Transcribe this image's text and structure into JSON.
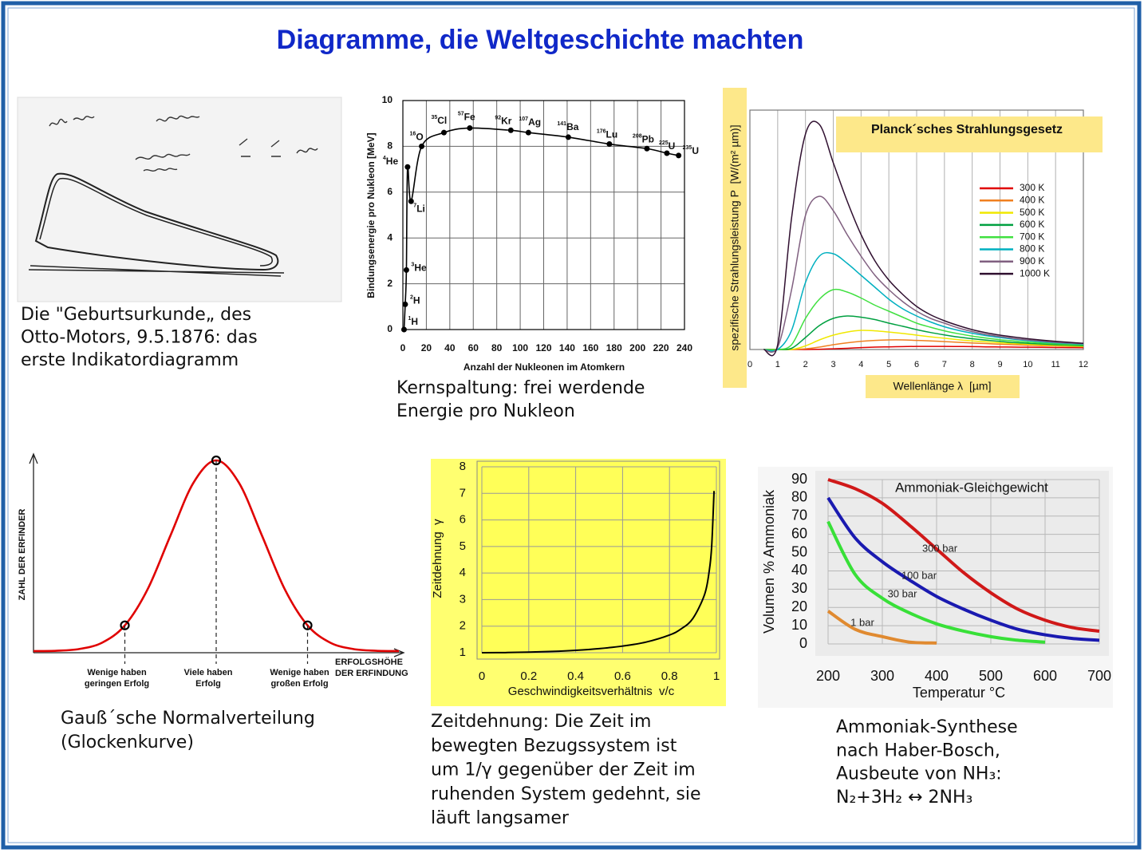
{
  "document": {
    "title": "Diagramme, die Weltgeschichte machten",
    "otto_caption": [
      "Die \"Geburtsurkunde„ des",
      "Otto-Motors, 9.5.1876: das",
      "erste Indikatordiagramm"
    ]
  },
  "chart_data": [
    {
      "type": "line",
      "ylabel": "Bindungsenergie pro Nukleon [MeV]",
      "xlabel": "Anzahl der Nukleonen im Atomkern",
      "x": [
        1,
        2,
        3,
        4,
        7,
        16,
        35,
        57,
        92,
        107,
        141,
        176,
        208,
        225,
        235
      ],
      "values": [
        0,
        1.1,
        2.6,
        7.1,
        5.6,
        8.0,
        8.6,
        8.8,
        8.7,
        8.6,
        8.4,
        8.1,
        7.9,
        7.7,
        7.6
      ],
      "point_labels": [
        {
          "mass": "1",
          "element": "H"
        },
        {
          "mass": "2",
          "element": "H"
        },
        {
          "mass": "3",
          "element": "He"
        },
        {
          "mass": "4",
          "element": "He"
        },
        {
          "mass": "7",
          "element": "Li"
        },
        {
          "mass": "16",
          "element": "O"
        },
        {
          "mass": "35",
          "element": "Cl"
        },
        {
          "mass": "57",
          "element": "Fe"
        },
        {
          "mass": "92",
          "element": "Kr"
        },
        {
          "mass": "107",
          "element": "Ag"
        },
        {
          "mass": "141",
          "element": "Ba"
        },
        {
          "mass": "176",
          "element": "Lu"
        },
        {
          "mass": "208",
          "element": "Pb"
        },
        {
          "mass": "225",
          "element": "U"
        },
        {
          "mass": "235",
          "element": "U"
        }
      ],
      "color": "#000000",
      "markers": true,
      "xlim": [
        0,
        240
      ],
      "xticks": [
        0,
        20,
        40,
        60,
        80,
        100,
        120,
        140,
        160,
        180,
        200,
        220,
        240
      ],
      "ylim": [
        0,
        10
      ],
      "yticks": [
        0,
        2,
        4,
        6,
        8,
        10
      ],
      "grid": true,
      "caption": [
        "Kernspaltung: frei werdende",
        "Energie pro Nukleon"
      ]
    },
    {
      "type": "line",
      "title": "Planck´sches Strahlungsgesetz",
      "ylabel": "spezifische Strahlungsleistung P  [W/(m² µm)]",
      "xlabel": "Wellenlänge λ  [µm]",
      "x": [
        0.5,
        1,
        1.5,
        2,
        2.5,
        3,
        3.5,
        4,
        4.5,
        5,
        5.5,
        6,
        6.5,
        7,
        7.5,
        8,
        8.5,
        9,
        9.5,
        10,
        10.5,
        11,
        11.5,
        12
      ],
      "series": [
        {
          "name": "300 K",
          "color": "#e00000",
          "values": [
            0,
            0,
            0,
            0,
            0.1,
            0.3,
            0.5,
            0.8,
            1,
            1.1,
            1.2,
            1.3,
            1.3,
            1.3,
            1.25,
            1.2,
            1.1,
            1.05,
            1,
            0.95,
            0.9,
            0.85,
            0.8,
            0.75
          ]
        },
        {
          "name": "400 K",
          "color": "#f08020",
          "values": [
            0,
            0,
            0,
            0.3,
            1,
            2,
            2.8,
            3.4,
            3.8,
            4,
            4,
            3.8,
            3.6,
            3.3,
            3,
            2.7,
            2.5,
            2.2,
            2,
            1.8,
            1.6,
            1.5,
            1.3,
            1.2
          ]
        },
        {
          "name": "500 K",
          "color": "#f0e800",
          "values": [
            0,
            0,
            0,
            1.5,
            4,
            6,
            7.3,
            8,
            7.8,
            7.3,
            6.7,
            6,
            5.3,
            4.7,
            4.1,
            3.6,
            3.2,
            2.8,
            2.5,
            2.2,
            1.9,
            1.7,
            1.5,
            1.3
          ]
        },
        {
          "name": "600 K",
          "color": "#00a040",
          "values": [
            0,
            0,
            0.5,
            5,
            10,
            13,
            14,
            13.5,
            12.5,
            11,
            9.7,
            8.3,
            7.1,
            6.1,
            5.2,
            4.5,
            3.9,
            3.4,
            2.9,
            2.6,
            2.3,
            2,
            1.8,
            1.6
          ]
        },
        {
          "name": "700 K",
          "color": "#40e040",
          "values": [
            0,
            0,
            2,
            13,
            21,
            25,
            24,
            21.5,
            18.5,
            16,
            13.5,
            11,
            9.3,
            7.8,
            6.6,
            5.6,
            4.8,
            4.1,
            3.6,
            3.1,
            2.7,
            2.4,
            2.1,
            1.9
          ]
        },
        {
          "name": "800 K",
          "color": "#00b0c0",
          "values": [
            0,
            0,
            8,
            28,
            39,
            40,
            36,
            31,
            26,
            21,
            17,
            14,
            11.5,
            9.5,
            8,
            6.8,
            5.8,
            5,
            4.3,
            3.7,
            3.2,
            2.8,
            2.5,
            2.2
          ]
        },
        {
          "name": "900 K",
          "color": "#806080",
          "values": [
            0,
            1,
            25,
            56,
            64,
            58,
            48,
            39,
            31,
            25,
            20,
            16,
            13,
            11,
            9,
            7.5,
            6.3,
            5.4,
            4.6,
            4,
            3.5,
            3,
            2.7,
            2.4
          ]
        },
        {
          "name": "1000 K",
          "color": "#301030",
          "values": [
            0,
            2,
            55,
            90,
            94,
            78,
            62,
            48,
            37,
            29,
            23,
            18,
            14.5,
            12,
            10,
            8.3,
            7,
            6,
            5.2,
            4.5,
            3.9,
            3.4,
            3,
            2.6
          ]
        }
      ],
      "legend": "right",
      "xlim": [
        0,
        12
      ],
      "xticks": [
        0,
        1,
        2,
        3,
        4,
        5,
        6,
        7,
        8,
        9,
        10,
        11,
        12
      ],
      "ylim": [
        0,
        100
      ],
      "grid": true
    },
    {
      "type": "line",
      "ylabel": "ZAHL DER ERFINDER",
      "xlabel": [
        "ERFOLGSHÖHE",
        "DER ERFINDUNG"
      ],
      "x": [
        -4,
        -3.5,
        -3,
        -2.5,
        -2,
        -1.5,
        -1,
        -0.5,
        0,
        0.5,
        1,
        1.5,
        2,
        2.5,
        3,
        3.5,
        4
      ],
      "values": [
        0.03,
        0.2,
        1.1,
        4.4,
        13.5,
        32.5,
        60.7,
        88.2,
        100,
        88.2,
        60.7,
        32.5,
        13.5,
        4.4,
        1.1,
        0.2,
        0.03
      ],
      "color": "#e00000",
      "xlim": [
        -4,
        4
      ],
      "ylim": [
        0,
        100
      ],
      "highlight_x": [
        -2,
        0,
        2
      ],
      "annotations": [
        [
          "Wenige haben",
          "geringen Erfolg"
        ],
        [
          "Viele haben",
          "Erfolg"
        ],
        [
          "Wenige haben",
          "großen Erfolg"
        ]
      ],
      "caption": [
        "Gauß´sche Normalverteilung",
        "(Glockenkurve)"
      ]
    },
    {
      "type": "line",
      "ylabel": "Zeitdehnung  γ",
      "xlabel": "Geschwindigkeitsverhältnis  v/c",
      "x": [
        0,
        0.1,
        0.2,
        0.3,
        0.4,
        0.5,
        0.6,
        0.7,
        0.8,
        0.85,
        0.9,
        0.95,
        0.97,
        0.98,
        0.99
      ],
      "values": [
        1,
        1.005,
        1.021,
        1.048,
        1.091,
        1.155,
        1.25,
        1.4,
        1.667,
        1.898,
        2.294,
        3.203,
        4.113,
        5.025,
        7.089
      ],
      "color": "#000000",
      "xlim": [
        0,
        1
      ],
      "xticks": [
        0,
        0.2,
        0.4,
        0.6,
        0.8,
        1
      ],
      "ylim": [
        1,
        8
      ],
      "yticks": [
        1,
        2,
        3,
        4,
        5,
        6,
        7,
        8
      ],
      "grid": true,
      "caption": [
        "Zeitdehnung: Die Zeit im",
        "bewegten Bezugssystem ist",
        "um 1/γ gegenüber der Zeit im",
        "ruhenden System gedehnt, sie",
        "läuft langsamer"
      ]
    },
    {
      "type": "line",
      "title": "Ammoniak-Gleichgewicht",
      "ylabel": "Volumen % Ammoniak",
      "xlabel": "Temperatur °C",
      "x": [
        200,
        250,
        300,
        350,
        400,
        450,
        500,
        550,
        600,
        650,
        700
      ],
      "series": [
        {
          "name": "300 bar",
          "color": "#d01818",
          "values": [
            90,
            85,
            77,
            65,
            52,
            39,
            28,
            19,
            13,
            9,
            7
          ]
        },
        {
          "name": "100 bar",
          "color": "#1a1ab0",
          "values": [
            80,
            58,
            45,
            35,
            26,
            19,
            13,
            8,
            5,
            3,
            2
          ]
        },
        {
          "name": "30 bar",
          "color": "#38e038",
          "values": [
            67,
            38,
            25,
            17,
            11,
            7,
            4,
            2,
            1,
            null,
            null
          ]
        },
        {
          "name": "1 bar",
          "color": "#e08a30",
          "values": [
            18,
            8,
            4,
            1,
            0.5,
            null,
            null,
            null,
            null,
            null,
            null
          ]
        }
      ],
      "legend": "inline",
      "xlim": [
        200,
        700
      ],
      "xticks": [
        200,
        300,
        400,
        500,
        600,
        700
      ],
      "ylim": [
        0,
        90
      ],
      "yticks": [
        0,
        10,
        20,
        30,
        40,
        50,
        60,
        70,
        80,
        90
      ],
      "grid": true,
      "caption": [
        "Ammoniak-Synthese",
        "nach Haber-Bosch,",
        "Ausbeute von NH₃:",
        "N₂+3H₂ ↔ 2NH₃"
      ]
    }
  ]
}
